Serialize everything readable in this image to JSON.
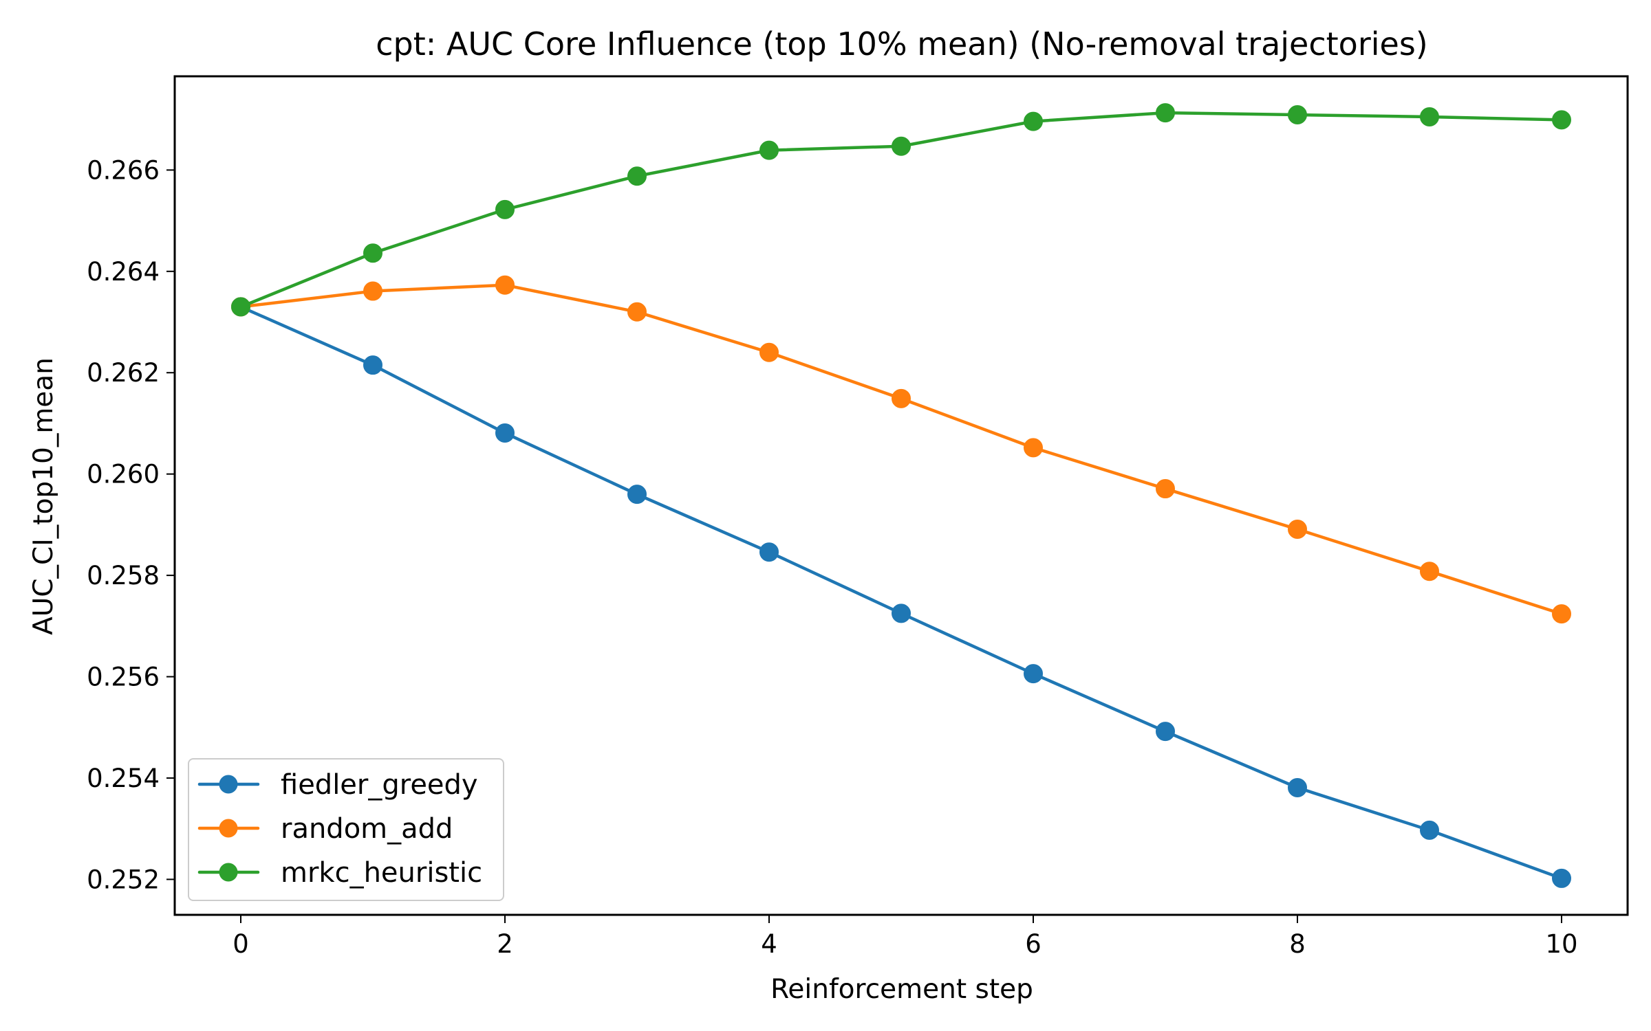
{
  "chart_data": {
    "type": "line",
    "title": "cpt: AUC Core Influence (top 10% mean) (No-removal trajectories)",
    "xlabel": "Reinforcement step",
    "ylabel": "AUC_CI_top10_mean",
    "x": [
      0,
      1,
      2,
      3,
      4,
      5,
      6,
      7,
      8,
      9,
      10
    ],
    "xlim": [
      -0.5,
      10.5
    ],
    "ylim": [
      0.2513,
      0.26785
    ],
    "xticks": [
      0,
      2,
      4,
      6,
      8,
      10
    ],
    "xtick_labels": [
      "0",
      "2",
      "4",
      "6",
      "8",
      "10"
    ],
    "yticks": [
      0.252,
      0.254,
      0.256,
      0.258,
      0.26,
      0.262,
      0.264,
      0.266
    ],
    "ytick_labels": [
      "0.252",
      "0.254",
      "0.256",
      "0.258",
      "0.260",
      "0.262",
      "0.264",
      "0.266"
    ],
    "grid": false,
    "legend_position": "lower-left",
    "series": [
      {
        "name": "fiedler_greedy",
        "color": "#1f77b4",
        "values": [
          0.2633,
          0.26215,
          0.26081,
          0.2596,
          0.25846,
          0.25725,
          0.25606,
          0.25492,
          0.25381,
          0.25297,
          0.25202
        ]
      },
      {
        "name": "random_add",
        "color": "#ff7f0e",
        "values": [
          0.2633,
          0.26361,
          0.26373,
          0.2632,
          0.2624,
          0.26149,
          0.26052,
          0.25971,
          0.25891,
          0.25808,
          0.25724
        ]
      },
      {
        "name": "mrkc_heuristic",
        "color": "#2ca02c",
        "values": [
          0.2633,
          0.26436,
          0.26522,
          0.26588,
          0.26639,
          0.26647,
          0.26696,
          0.26713,
          0.26709,
          0.26705,
          0.26699
        ]
      }
    ]
  }
}
